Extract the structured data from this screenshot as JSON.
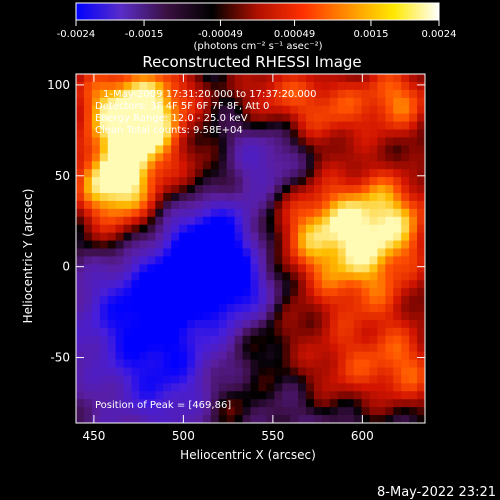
{
  "chart_data": [
    {
      "type": "heatmap",
      "role": "colorbar",
      "ticks": [
        "-0.0024",
        "-0.0015",
        "-0.00049",
        "0.00049",
        "0.0015",
        "0.0024"
      ],
      "tick_values": [
        -0.0024,
        -0.0015,
        -0.00049,
        0.00049,
        0.0015,
        0.0024
      ],
      "range": [
        -0.0024,
        0.0024
      ],
      "unit_label": "(photons cm⁻² s⁻¹ asec⁻²)",
      "colors": [
        "#0000ff",
        "#5a2dc8",
        "#3a1040",
        "#000000",
        "#b01000",
        "#ff3000",
        "#ff9000",
        "#ffe800",
        "#ffffff"
      ]
    },
    {
      "type": "heatmap",
      "role": "image",
      "title": "Reconstructed RHESSI Image",
      "xlabel": "Heliocentric X (arcsec)",
      "ylabel": "Heliocentric Y (arcsec)",
      "xlim": [
        440,
        635
      ],
      "ylim": [
        -86,
        106
      ],
      "xticks": [
        450,
        500,
        550,
        600
      ],
      "yticks": [
        -50,
        0,
        50,
        100
      ],
      "annotations": {
        "time_range": "1-May-2009 17:31:20.000 to 17:37:20.000",
        "detectors": "Detectors: 3F 4F 5F 6F 7F 8F, Att 0",
        "energy": "Energy Range: 12.0 - 25.0 keV",
        "clean": "Clean     Total counts: 9.58E+04",
        "peak": "Position of Peak = [469,86]"
      },
      "peak": [
        469,
        86
      ]
    }
  ],
  "footer": {
    "timestamp": "8-May-2022 23:21"
  }
}
